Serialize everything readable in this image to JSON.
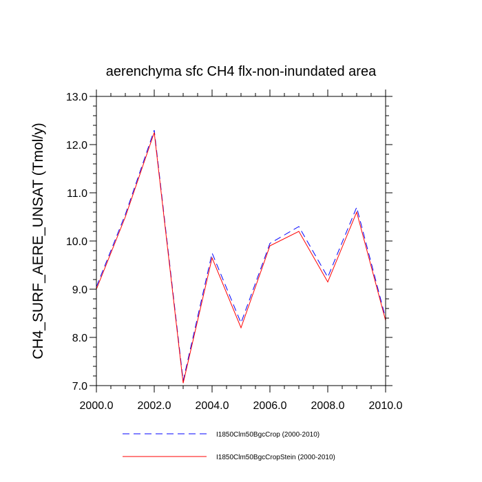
{
  "chart_data": {
    "type": "line",
    "title": "aerenchyma sfc CH4 flx-non-inundated area",
    "xlabel": "",
    "ylabel": "CH4_SURF_AERE_UNSAT  (Tmol/y)",
    "xlim": [
      2000,
      2010
    ],
    "ylim": [
      7.0,
      13.0
    ],
    "x_ticks": [
      "2000.0",
      "2002.0",
      "2004.0",
      "2006.0",
      "2008.0",
      "2010.0"
    ],
    "y_ticks": [
      "7.0",
      "8.0",
      "9.0",
      "10.0",
      "11.0",
      "12.0",
      "13.0"
    ],
    "x": [
      2000,
      2001,
      2002,
      2003,
      2004,
      2005,
      2006,
      2007,
      2008,
      2009,
      2010
    ],
    "series": [
      {
        "name": "I1850Clm50BgcCrop (2000-2010)",
        "color": "#0000ff",
        "style": "dashed",
        "values": [
          9.05,
          10.55,
          12.3,
          7.1,
          9.75,
          8.3,
          9.95,
          10.3,
          9.25,
          10.7,
          8.4
        ]
      },
      {
        "name": "I1850Clm50BgcCropStein (2000-2010)",
        "color": "#ff0000",
        "style": "solid",
        "values": [
          9.0,
          10.5,
          12.25,
          7.05,
          9.65,
          8.2,
          9.9,
          10.2,
          9.15,
          10.6,
          8.35
        ]
      }
    ],
    "grid": false,
    "legend_position": "bottom"
  }
}
